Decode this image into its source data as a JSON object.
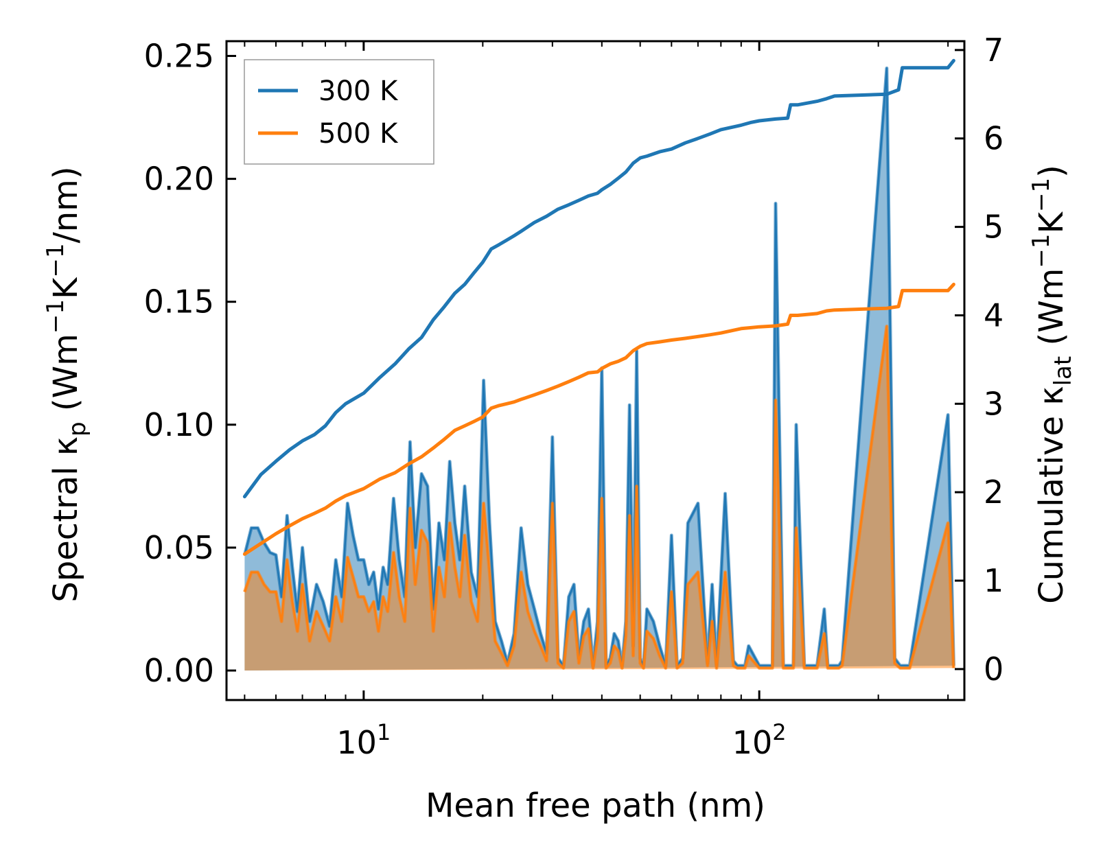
{
  "chart_data": {
    "type": "line",
    "xscale": "log",
    "xlabel": "Mean free path (nm)",
    "ylabel_left": "Spectral κp (Wm−1K−1/nm)",
    "ylabel_left_parts": [
      "Spectral κ",
      "p",
      " (Wm",
      "−1",
      "K",
      "−1",
      "/nm)"
    ],
    "ylabel_right": "Cumulative κlat (Wm−1K−1)",
    "ylabel_right_parts": [
      "Cumulative κ",
      "lat",
      " (Wm",
      "−1",
      "K",
      "−1",
      ")"
    ],
    "xlim": [
      4.5,
      330
    ],
    "ylim_left": [
      -0.012,
      0.256
    ],
    "ylim_right": [
      -0.35,
      7.1
    ],
    "x_ticks": [
      {
        "value": 10,
        "base": "10",
        "exp": "1"
      },
      {
        "value": 100,
        "base": "10",
        "exp": "2"
      }
    ],
    "y_ticks_left": [
      "0.00",
      "0.05",
      "0.10",
      "0.15",
      "0.20",
      "0.25"
    ],
    "y_ticks_right": [
      "0",
      "1",
      "2",
      "3",
      "4",
      "5",
      "6",
      "7"
    ],
    "legend": {
      "position": "top-left",
      "entries": [
        "300 K",
        "500 K"
      ]
    },
    "colors": {
      "300 K": "#1f77b4",
      "500 K": "#ff7f0e"
    },
    "spectral_x": [
      5.0,
      5.2,
      5.4,
      5.6,
      5.8,
      6.0,
      6.2,
      6.4,
      6.6,
      6.8,
      7.0,
      7.3,
      7.6,
      7.9,
      8.2,
      8.5,
      8.8,
      9.1,
      9.4,
      9.7,
      10.0,
      10.3,
      10.6,
      10.9,
      11.2,
      11.5,
      11.9,
      12.3,
      12.7,
      13.1,
      13.5,
      14.0,
      14.5,
      15.0,
      15.5,
      16.0,
      16.5,
      17.0,
      17.5,
      18.0,
      18.7,
      19.4,
      20.1,
      20.8,
      21.5,
      22.3,
      23.1,
      24.0,
      25.0,
      26.0,
      27.0,
      28.0,
      29.0,
      30.0,
      31.0,
      32.0,
      33.0,
      34.0,
      35.0,
      36.0,
      37.0,
      38.0,
      39.0,
      40.0,
      41.0,
      42.0,
      43.0,
      44.0,
      45.0,
      46.0,
      47.0,
      48.0,
      49.0,
      50.0,
      51.0,
      52.0,
      54.0,
      56.0,
      58.0,
      60.0,
      62.0,
      64.0,
      66.0,
      70.0,
      74.0,
      76.0,
      78.0,
      82.0,
      86.0,
      88.0,
      90.0,
      92.0,
      94.0,
      100.0,
      106.0,
      108.0,
      110.0,
      115.0,
      120.0,
      122.0,
      124.0,
      130.0,
      140.0,
      146.0,
      149.0,
      152.0,
      156.0,
      159.0,
      162.0,
      210.0,
      220.0,
      227.0,
      230.0,
      234.0,
      240.0,
      300.0,
      310.0,
      313.0,
      316.0
    ],
    "spectral_300K": [
      0.047,
      0.058,
      0.058,
      0.052,
      0.048,
      0.047,
      0.03,
      0.063,
      0.042,
      0.024,
      0.05,
      0.02,
      0.035,
      0.028,
      0.018,
      0.045,
      0.03,
      0.068,
      0.055,
      0.045,
      0.045,
      0.035,
      0.04,
      0.025,
      0.042,
      0.035,
      0.07,
      0.045,
      0.03,
      0.093,
      0.05,
      0.08,
      0.075,
      0.025,
      0.06,
      0.045,
      0.085,
      0.06,
      0.045,
      0.075,
      0.04,
      0.03,
      0.118,
      0.06,
      0.02,
      0.012,
      0.003,
      0.015,
      0.058,
      0.035,
      0.025,
      0.015,
      0.007,
      0.095,
      0.005,
      0.002,
      0.03,
      0.035,
      0.005,
      0.02,
      0.025,
      0.002,
      0.02,
      0.123,
      0.002,
      0.005,
      0.015,
      0.012,
      0.002,
      0.02,
      0.108,
      0.01,
      0.13,
      0.005,
      0.002,
      0.025,
      0.02,
      0.01,
      0.002,
      0.055,
      0.002,
      0.005,
      0.06,
      0.068,
      0.003,
      0.035,
      0.002,
      0.072,
      0.004,
      0.002,
      0.002,
      0.002,
      0.01,
      0.002,
      0.002,
      0.002,
      0.19,
      0.002,
      0.002,
      0.002,
      0.1,
      0.002,
      0.002,
      0.025,
      0.002,
      0.002,
      0.002,
      0.002,
      0.004,
      0.245,
      0.005,
      0.002,
      0.002,
      0.002,
      0.002,
      0.104,
      0.002
    ],
    "spectral_500K": [
      0.032,
      0.04,
      0.04,
      0.035,
      0.032,
      0.032,
      0.02,
      0.045,
      0.028,
      0.016,
      0.035,
      0.012,
      0.024,
      0.018,
      0.012,
      0.03,
      0.02,
      0.046,
      0.038,
      0.03,
      0.03,
      0.024,
      0.028,
      0.016,
      0.03,
      0.024,
      0.048,
      0.03,
      0.02,
      0.066,
      0.035,
      0.057,
      0.052,
      0.016,
      0.042,
      0.03,
      0.06,
      0.042,
      0.03,
      0.055,
      0.028,
      0.02,
      0.068,
      0.04,
      0.012,
      0.007,
      0.002,
      0.01,
      0.04,
      0.024,
      0.016,
      0.01,
      0.004,
      0.068,
      0.003,
      0.001,
      0.02,
      0.024,
      0.003,
      0.014,
      0.017,
      0.001,
      0.013,
      0.07,
      0.001,
      0.003,
      0.01,
      0.008,
      0.001,
      0.014,
      0.063,
      0.006,
      0.075,
      0.003,
      0.001,
      0.016,
      0.013,
      0.006,
      0.001,
      0.032,
      0.001,
      0.003,
      0.035,
      0.04,
      0.002,
      0.02,
      0.001,
      0.04,
      0.002,
      0.001,
      0.001,
      0.001,
      0.006,
      0.001,
      0.001,
      0.001,
      0.11,
      0.001,
      0.001,
      0.001,
      0.058,
      0.001,
      0.001,
      0.015,
      0.001,
      0.001,
      0.001,
      0.001,
      0.002,
      0.14,
      0.003,
      0.001,
      0.001,
      0.001,
      0.001,
      0.06,
      0.001
    ],
    "cumulative_x": [
      5.0,
      5.5,
      6.0,
      6.5,
      7.0,
      7.5,
      8.0,
      8.5,
      9.0,
      10.0,
      11.0,
      12.0,
      13.0,
      14.0,
      15.0,
      16.0,
      17.0,
      18.0,
      19.0,
      20.0,
      21.0,
      22.0,
      23.0,
      24.0,
      25.0,
      27.0,
      29.0,
      31.0,
      33.0,
      35.0,
      37.0,
      39.0,
      40.0,
      42.0,
      44.0,
      46.0,
      48.0,
      50.0,
      52.0,
      56.0,
      60.0,
      65.0,
      70.0,
      75.0,
      80.0,
      90.0,
      95.0,
      100.0,
      110.0,
      118.0,
      120.0,
      125.0,
      140.0,
      148.0,
      155.0,
      210.0,
      225.0,
      230.0,
      240.0,
      300.0,
      310.0
    ],
    "cumulative_300K": [
      1.95,
      2.2,
      2.35,
      2.48,
      2.58,
      2.65,
      2.75,
      2.9,
      3.0,
      3.12,
      3.3,
      3.45,
      3.62,
      3.75,
      3.95,
      4.1,
      4.25,
      4.35,
      4.48,
      4.6,
      4.75,
      4.8,
      4.85,
      4.9,
      4.95,
      5.05,
      5.12,
      5.2,
      5.25,
      5.3,
      5.35,
      5.38,
      5.42,
      5.48,
      5.55,
      5.62,
      5.72,
      5.78,
      5.8,
      5.85,
      5.88,
      5.95,
      6.0,
      6.05,
      6.1,
      6.15,
      6.18,
      6.2,
      6.22,
      6.23,
      6.38,
      6.38,
      6.42,
      6.45,
      6.48,
      6.5,
      6.55,
      6.8,
      6.8,
      6.8,
      6.88
    ],
    "cumulative_500K": [
      1.3,
      1.42,
      1.53,
      1.62,
      1.7,
      1.76,
      1.82,
      1.9,
      1.96,
      2.04,
      2.15,
      2.22,
      2.32,
      2.4,
      2.5,
      2.6,
      2.7,
      2.75,
      2.8,
      2.85,
      2.95,
      2.98,
      3.0,
      3.02,
      3.05,
      3.1,
      3.15,
      3.2,
      3.25,
      3.3,
      3.35,
      3.36,
      3.4,
      3.45,
      3.48,
      3.52,
      3.6,
      3.65,
      3.68,
      3.7,
      3.72,
      3.74,
      3.76,
      3.78,
      3.8,
      3.85,
      3.86,
      3.87,
      3.88,
      3.9,
      4.0,
      4.0,
      4.02,
      4.05,
      4.06,
      4.08,
      4.1,
      4.28,
      4.28,
      4.28,
      4.35
    ]
  }
}
